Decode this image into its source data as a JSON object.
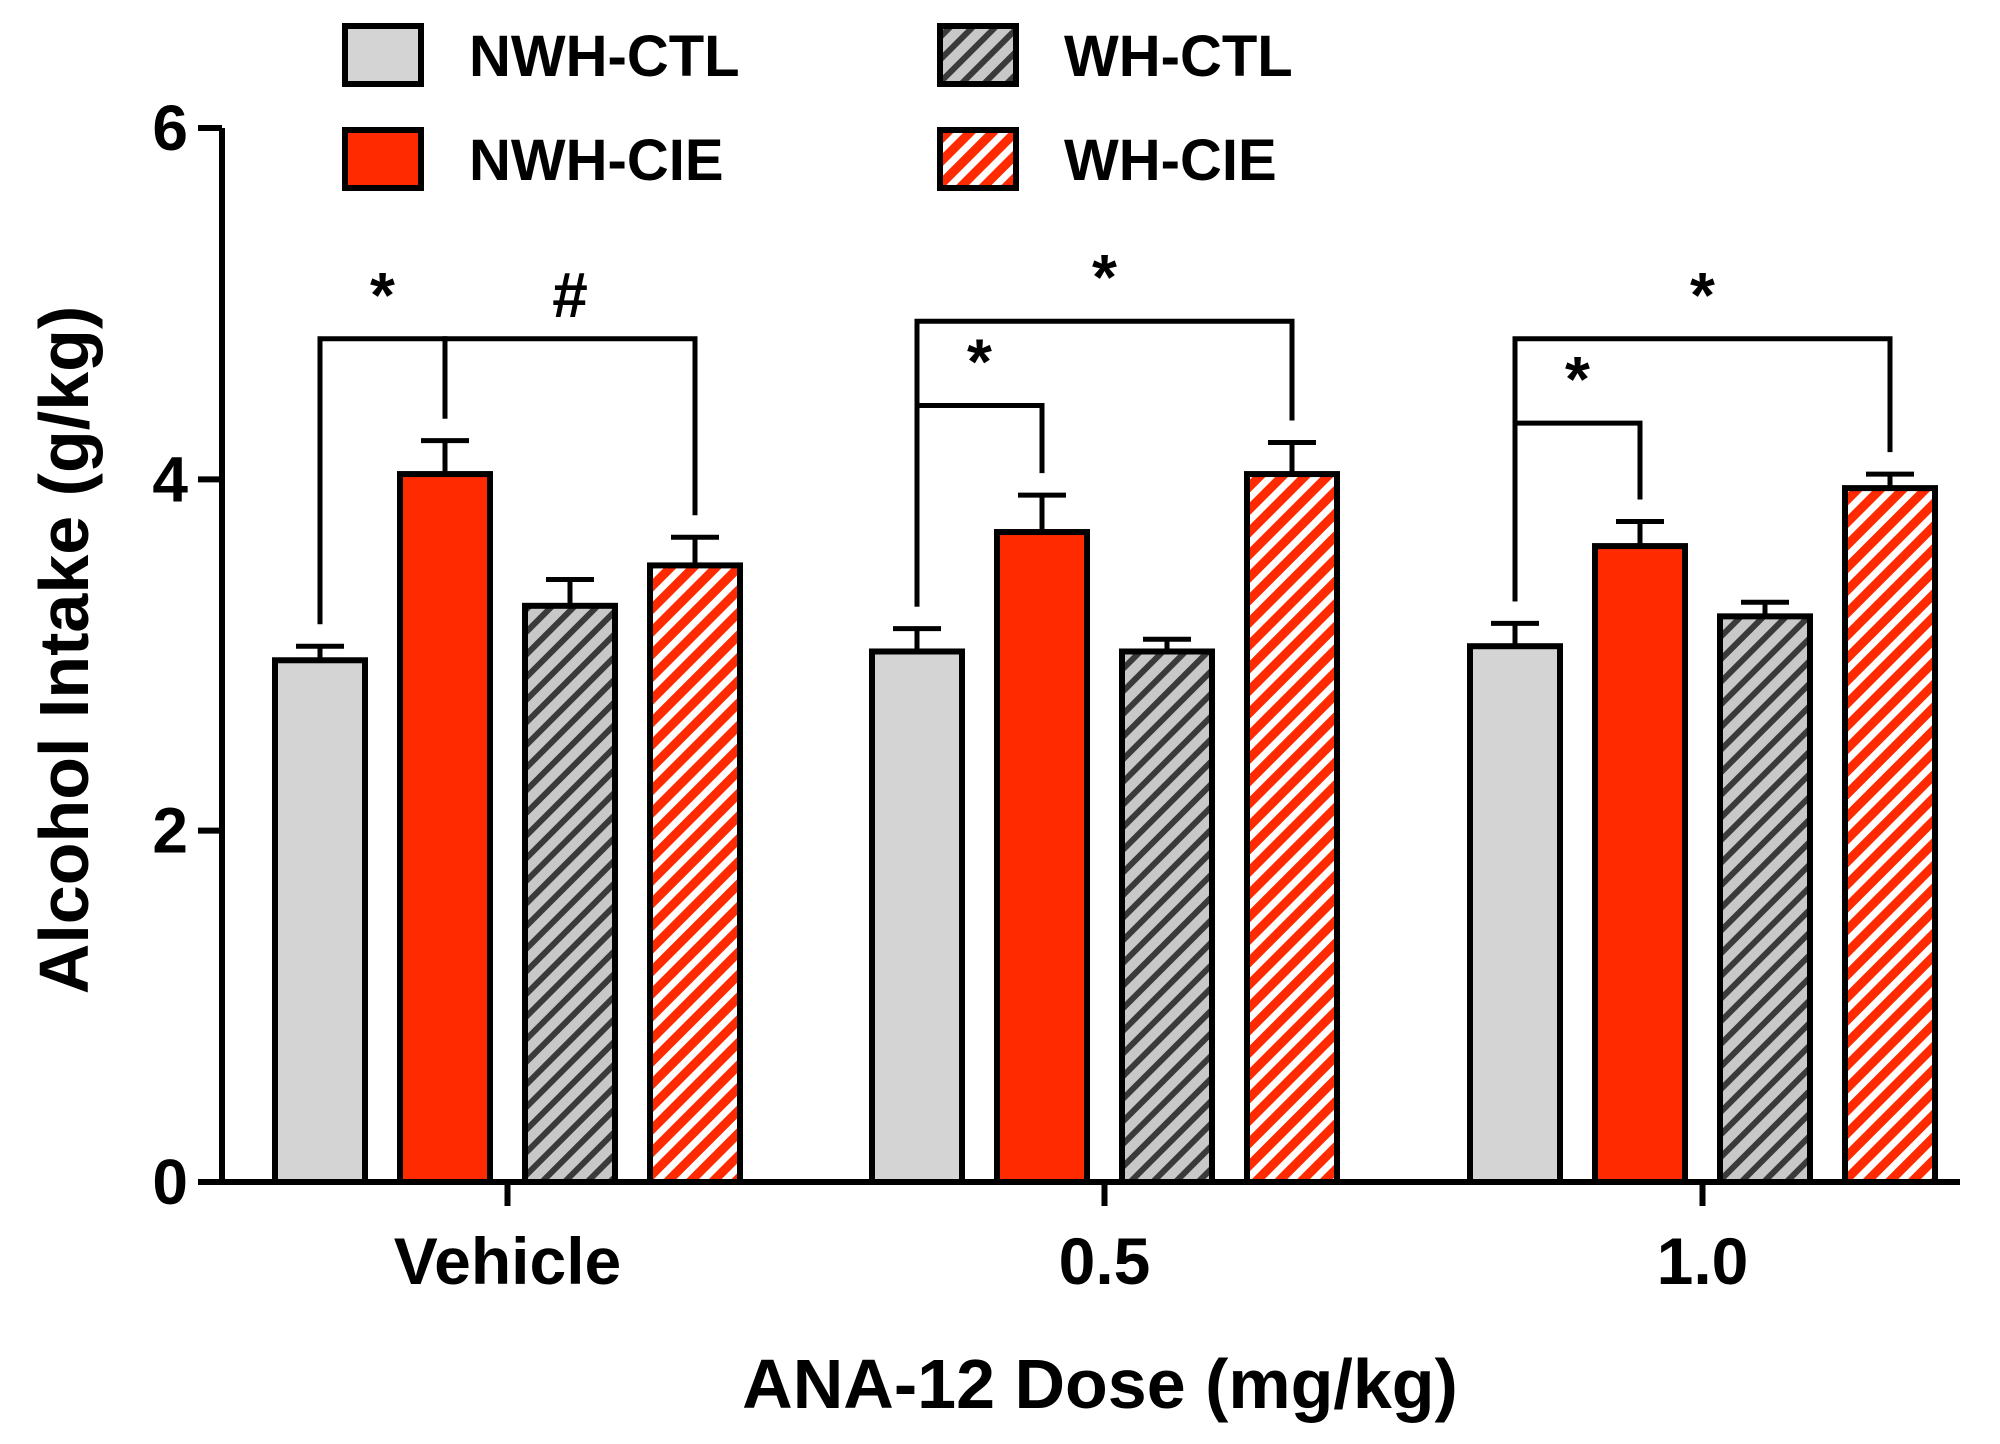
{
  "chart_data": {
    "type": "bar",
    "xlabel": "ANA-12 Dose (mg/kg)",
    "ylabel": "Alcohol Intake (g/kg)",
    "ylim": [
      0,
      6
    ],
    "yticks": [
      0,
      2,
      4,
      6
    ],
    "categories": [
      "Vehicle",
      "0.5",
      "1.0"
    ],
    "legend_position": "top",
    "series": [
      {
        "name": "NWH-CTL",
        "values": [
          2.97,
          3.02,
          3.05
        ],
        "errors": [
          0.08,
          0.13,
          0.13
        ],
        "color": "#d4d4d4",
        "pattern": "solid"
      },
      {
        "name": "NWH-CIE",
        "values": [
          4.03,
          3.7,
          3.62
        ],
        "errors": [
          0.19,
          0.21,
          0.14
        ],
        "color": "#ff2a00",
        "pattern": "solid"
      },
      {
        "name": "WH-CTL",
        "values": [
          3.28,
          3.02,
          3.22
        ],
        "errors": [
          0.15,
          0.07,
          0.08
        ],
        "color": "#c0c0c0",
        "pattern": "hatch-dark"
      },
      {
        "name": "WH-CIE",
        "values": [
          3.51,
          4.03,
          3.95
        ],
        "errors": [
          0.16,
          0.18,
          0.08
        ],
        "color": "#ff2a00",
        "pattern": "hatch-white"
      }
    ],
    "annotations": [
      {
        "label": "*",
        "group": 0,
        "from": 0,
        "to": 1,
        "height": 4.8
      },
      {
        "label": "#",
        "group": 0,
        "from": 1,
        "to": 3,
        "height": 4.8
      },
      {
        "label": "*",
        "group": 1,
        "from": 0,
        "to": 1,
        "height": 4.42
      },
      {
        "label": "*",
        "group": 1,
        "from": 0,
        "to": 3,
        "height": 4.9
      },
      {
        "label": "*",
        "group": 2,
        "from": 0,
        "to": 1,
        "height": 4.32
      },
      {
        "label": "*",
        "group": 2,
        "from": 0,
        "to": 3,
        "height": 4.8
      }
    ]
  }
}
